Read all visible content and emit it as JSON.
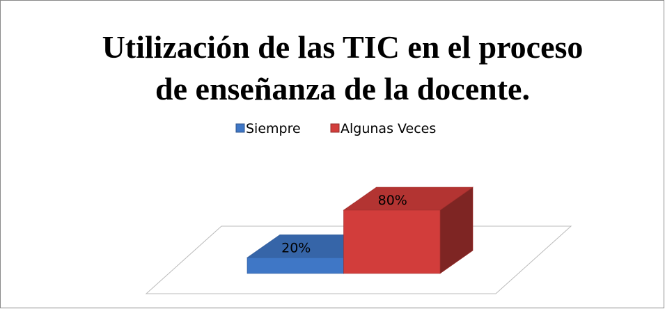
{
  "chart_data": {
    "type": "bar3d",
    "title": [
      "Utilización de las TIC en el proceso",
      "de enseñanza de la docente."
    ],
    "categories": [
      null
    ],
    "series": [
      {
        "name": "Siempre",
        "color": "#3f77c6",
        "values": [
          20
        ],
        "value_labels": [
          "20%"
        ]
      },
      {
        "name": "Algunas Veces",
        "color": "#d23d3b",
        "values": [
          80
        ],
        "value_labels": [
          "80%"
        ]
      }
    ],
    "legend": "top"
  }
}
